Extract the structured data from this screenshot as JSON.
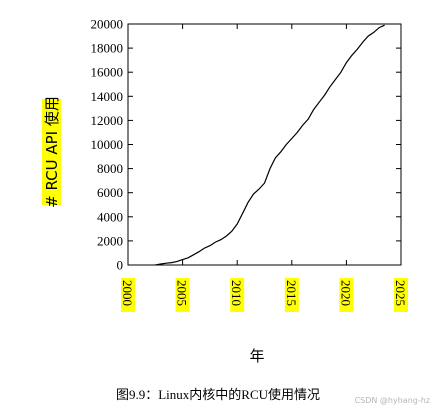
{
  "chart_data": {
    "type": "line",
    "title": "",
    "xlabel": "年",
    "ylabel": "# RCU API 使用",
    "xlim": [
      2000,
      2025
    ],
    "ylim": [
      0,
      20000
    ],
    "x_ticks": [
      "2000",
      "2005",
      "2010",
      "2015",
      "2020",
      "2025"
    ],
    "y_ticks": [
      "0",
      "2000",
      "4000",
      "6000",
      "8000",
      "10000",
      "12000",
      "14000",
      "16000",
      "18000",
      "20000"
    ],
    "highlight_color": "#ffff00",
    "line_color": "#000000",
    "grid": false,
    "series": [
      {
        "x": [
          2002.5,
          2003.0,
          2003.5,
          2004.0,
          2004.5,
          2005.0,
          2005.5,
          2006.0,
          2006.5,
          2007.0,
          2007.5,
          2008.0,
          2008.5,
          2009.0,
          2009.5,
          2010.0,
          2010.5,
          2011.0,
          2011.5,
          2012.0,
          2012.5,
          2013.0,
          2013.5,
          2014.0,
          2014.5,
          2015.0,
          2015.5,
          2016.0,
          2016.5,
          2017.0,
          2017.5,
          2018.0,
          2018.5,
          2019.0,
          2019.5,
          2020.0,
          2020.5,
          2021.0,
          2021.5,
          2022.0,
          2022.5,
          2023.0,
          2023.5
        ],
        "y": [
          0,
          80,
          150,
          200,
          300,
          450,
          600,
          850,
          1100,
          1400,
          1600,
          1900,
          2100,
          2400,
          2800,
          3400,
          4300,
          5200,
          5900,
          6300,
          6800,
          8000,
          8900,
          9400,
          10000,
          10500,
          11000,
          11600,
          12100,
          12900,
          13500,
          14100,
          14800,
          15400,
          16000,
          16800,
          17400,
          17900,
          18500,
          19000,
          19300,
          19700,
          19900
        ]
      }
    ]
  },
  "caption": "图9.9：Linux内核中的RCU使用情况",
  "watermark": "CSDN @hyhang-hz"
}
